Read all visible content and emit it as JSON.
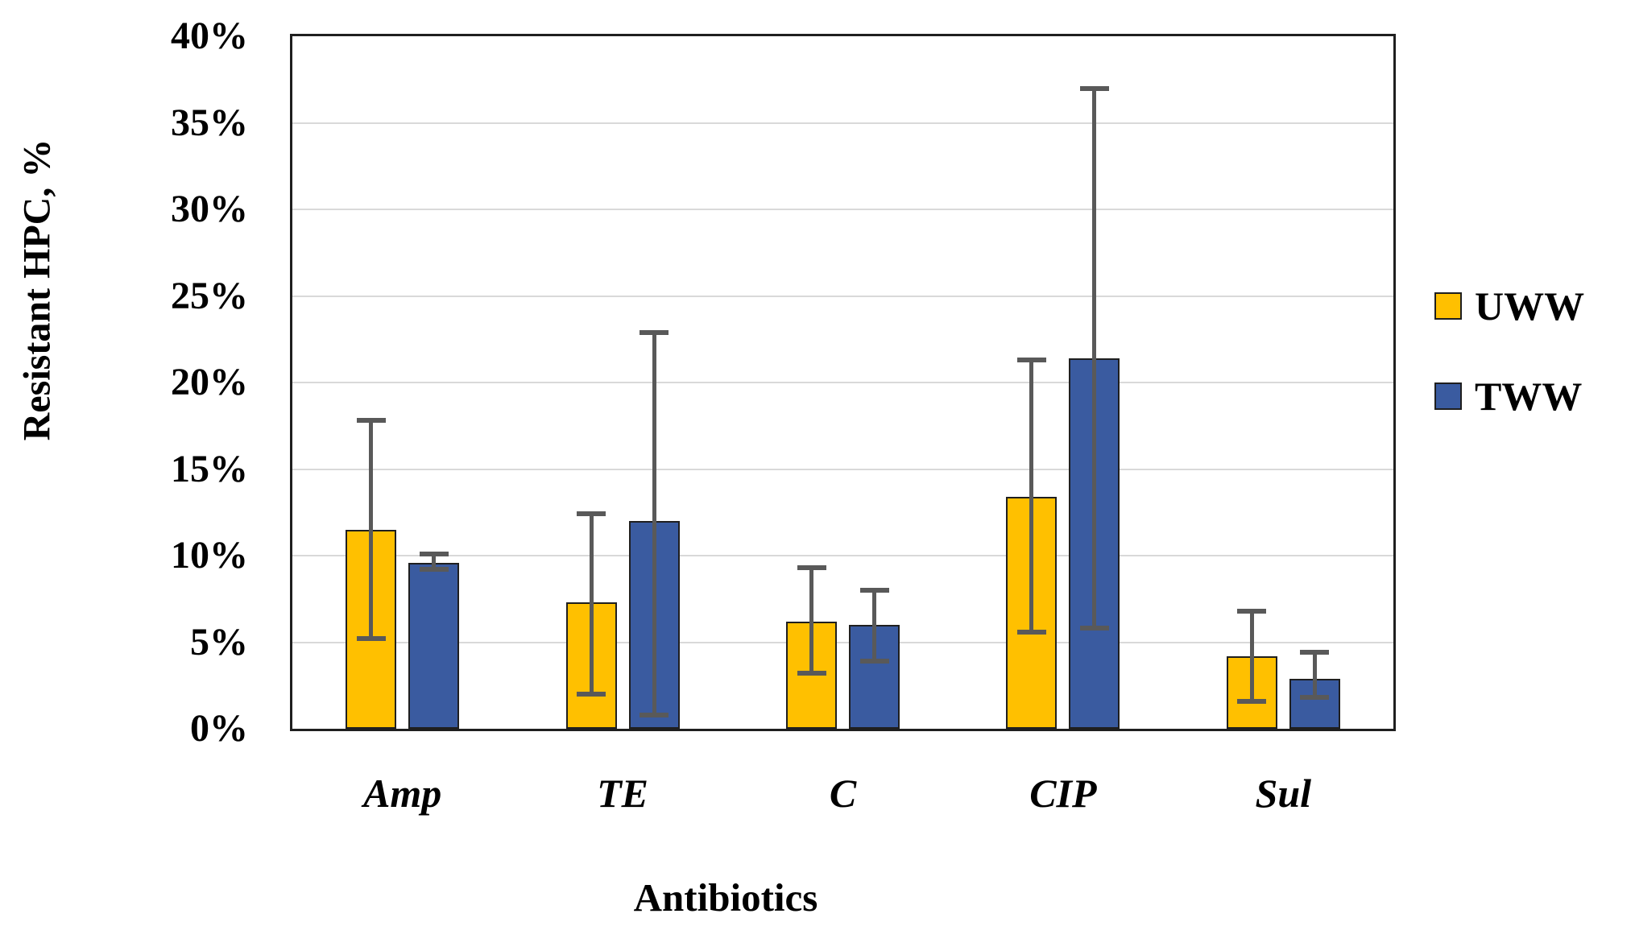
{
  "chart_data": {
    "type": "bar",
    "title": "",
    "xlabel": "Antibiotics",
    "ylabel": "Resistant HPC, %",
    "ylim": [
      0,
      40
    ],
    "y_tick_step": 5,
    "y_unit": "%",
    "y_tick_labels": [
      "40%",
      "35%",
      "30%",
      "25%",
      "20%",
      "15%",
      "10%",
      "5%",
      "0%"
    ],
    "grid": true,
    "gridline_color": "#D9D9D9",
    "error_bar_color": "#595959",
    "legend_position": "right",
    "categories": [
      "Amp",
      "TE",
      "C",
      "CIP",
      "Sul"
    ],
    "series": [
      {
        "name": "UWW",
        "color": "#FFC000",
        "values": [
          11.5,
          7.3,
          6.2,
          13.4,
          4.2
        ],
        "error_low": [
          5.2,
          2.0,
          3.2,
          5.6,
          1.6
        ],
        "error_high": [
          17.8,
          12.4,
          9.3,
          21.3,
          6.8
        ]
      },
      {
        "name": "TWW",
        "color": "#3A5BA0",
        "values": [
          9.6,
          12.0,
          6.0,
          21.4,
          2.9
        ],
        "error_low": [
          9.2,
          0.8,
          3.9,
          5.8,
          1.8
        ],
        "error_high": [
          10.1,
          22.9,
          8.0,
          37.0,
          4.4
        ]
      }
    ]
  }
}
